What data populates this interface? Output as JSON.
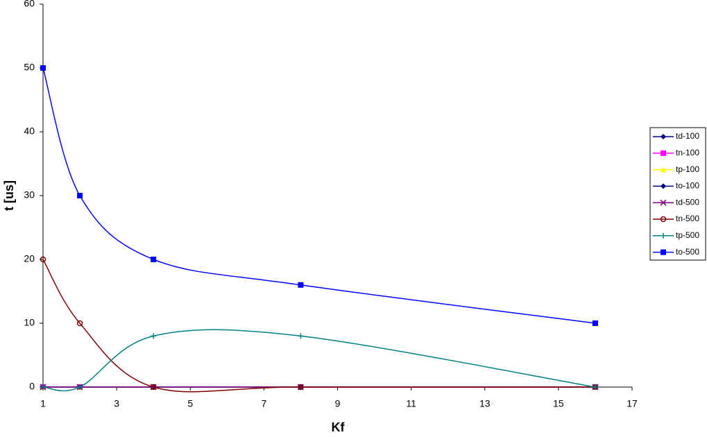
{
  "chart_data": {
    "type": "line",
    "x_label": "Kf",
    "y_label": "t [us]",
    "x": [
      1,
      2,
      4,
      8,
      16
    ],
    "xlim": [
      1,
      17
    ],
    "xticks": [
      1,
      3,
      5,
      7,
      9,
      11,
      13,
      15,
      17
    ],
    "ylim": [
      0,
      60
    ],
    "yticks": [
      0,
      10,
      20,
      30,
      40,
      50,
      60
    ],
    "grid": false,
    "smooth": true,
    "legend": "right",
    "series": [
      {
        "name": "td-100",
        "color": "#000080",
        "marker": "diamond",
        "values": [
          0,
          0,
          0,
          0,
          0
        ]
      },
      {
        "name": "tn-100",
        "color": "#ff00ff",
        "marker": "square",
        "values": [
          0,
          0,
          0,
          0,
          0
        ]
      },
      {
        "name": "tp-100",
        "color": "#ffff00",
        "marker": "triangle",
        "values": [
          0,
          0,
          0,
          0,
          0
        ]
      },
      {
        "name": "to-100",
        "color": "#000080",
        "marker": "diamond",
        "values": [
          0,
          0,
          0,
          0,
          0
        ]
      },
      {
        "name": "td-500",
        "color": "#800080",
        "marker": "x",
        "values": [
          0,
          0,
          0,
          0,
          0
        ]
      },
      {
        "name": "tn-500",
        "color": "#800000",
        "marker": "circle",
        "values": [
          20,
          10,
          0,
          0,
          0
        ]
      },
      {
        "name": "tp-500",
        "color": "#008080",
        "marker": "plus",
        "values": [
          0,
          0,
          8,
          8,
          0
        ]
      },
      {
        "name": "to-500",
        "color": "#0000ff",
        "marker": "square",
        "values": [
          50,
          30,
          20,
          16,
          10
        ]
      }
    ]
  }
}
